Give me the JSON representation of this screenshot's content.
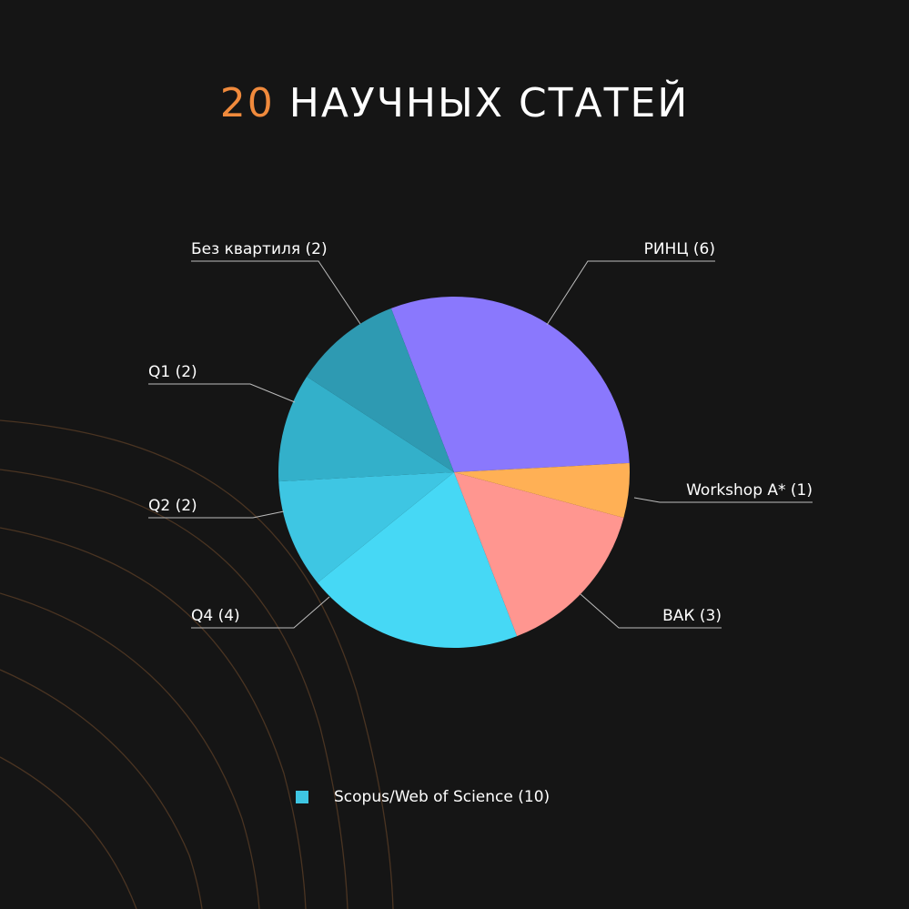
{
  "colors": {
    "background": "#151515",
    "accent": "#f08a3c",
    "text": "#ffffff",
    "leader": "#bdbdbd",
    "decor_arcs": "#4a3422"
  },
  "title": {
    "count": "20",
    "rest": "НАУЧНЫХ СТАТЕЙ"
  },
  "chart_data": {
    "type": "pie",
    "title": "20 НАУЧНЫХ СТАТЕЙ",
    "total": 20,
    "start_angle_deg": -3,
    "direction": "counterclockwise",
    "slices": [
      {
        "label": "РИНЦ (6)",
        "value": 6,
        "color": "#8a78fd"
      },
      {
        "label": "Без квартиля (2)",
        "value": 2,
        "color": "#2e9ab2"
      },
      {
        "label": "Q1 (2)",
        "value": 2,
        "color": "#33b0ca"
      },
      {
        "label": "Q2 (2)",
        "value": 2,
        "color": "#3ec6e3"
      },
      {
        "label": "Q4 (4)",
        "value": 4,
        "color": "#46d8f5"
      },
      {
        "label": "ВАК (3)",
        "value": 3,
        "color": "#ff9690"
      },
      {
        "label": "Workshop A* (1)",
        "value": 1,
        "color": "#ffb055"
      }
    ],
    "legend": [
      {
        "label": "Scopus/Web of Science (10)",
        "color": "#3ec6e3"
      }
    ],
    "legend_position": "bottom"
  }
}
